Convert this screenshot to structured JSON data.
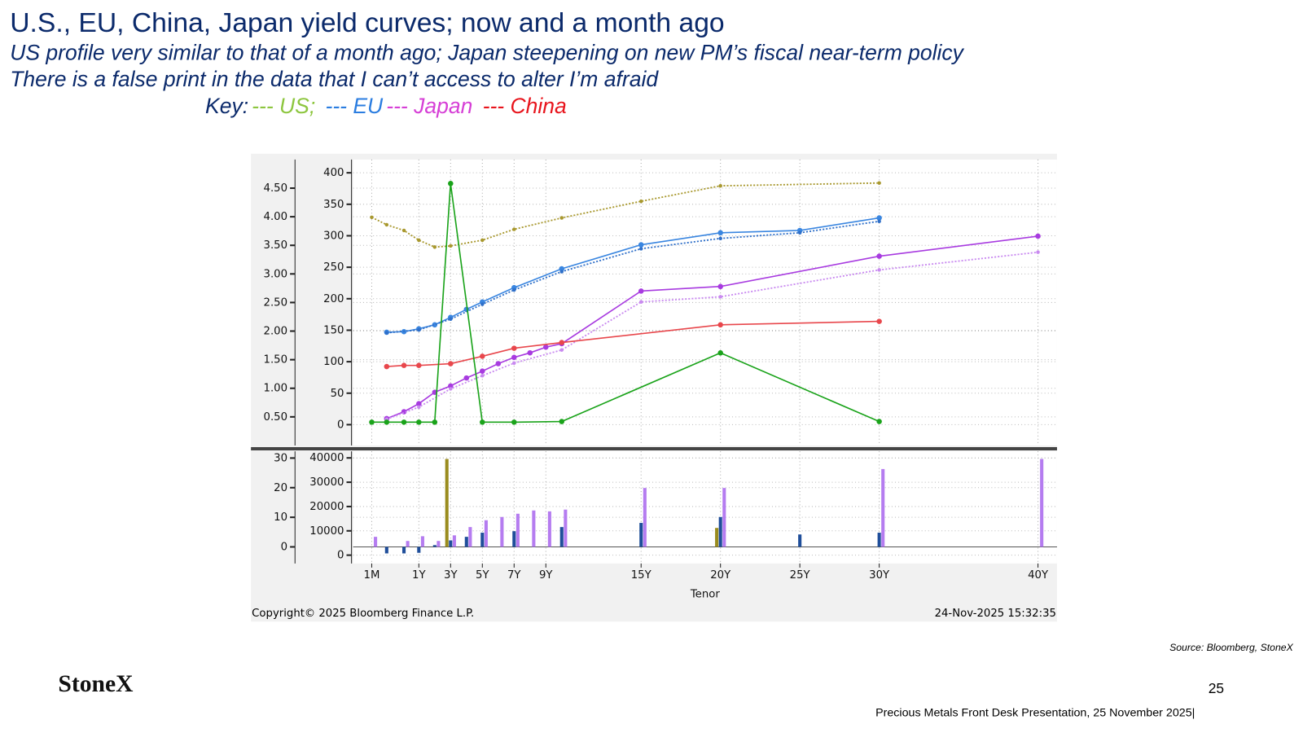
{
  "header": {
    "title": "U.S., EU, China, Japan yield curves; now and a month ago",
    "subtitle": [
      "US profile very similar to that of a month ago; Japan steepening on new PM’s fiscal near-term policy",
      "There is a false print in the data that I can’t access to alter I’m afraid"
    ],
    "key_label": "Key:",
    "key": [
      {
        "label": "--- US;",
        "color": "#8dc63f"
      },
      {
        "label": "--- EU",
        "color": "#2b7de0"
      },
      {
        "label": "--- Japan",
        "color": "#d63fd6"
      },
      {
        "label": "--- China",
        "color": "#e8141c"
      }
    ]
  },
  "chart_data": [
    {
      "type": "line",
      "xlim": [
        -0.092,
        41.2
      ],
      "ylim": [
        0,
        5
      ],
      "y2lim": [
        -33,
        421
      ],
      "grid": true,
      "yticks": [
        {
          "value": 0.5,
          "label": "0.50"
        },
        {
          "value": 1,
          "label": "1.00"
        },
        {
          "value": 1.5,
          "label": "1.50"
        },
        {
          "value": 2,
          "label": "2.00"
        },
        {
          "value": 2.5,
          "label": "2.50"
        },
        {
          "value": 3,
          "label": "3.00"
        },
        {
          "value": 3.5,
          "label": "3.50"
        },
        {
          "value": 4,
          "label": "4.00"
        },
        {
          "value": 4.5,
          "label": "4.50"
        }
      ],
      "y2ticks": [
        0,
        50,
        100,
        150,
        200,
        250,
        300,
        350,
        400
      ],
      "xticks": [
        0.0833,
        1,
        3,
        5,
        7,
        9,
        15,
        20,
        25,
        30,
        40
      ],
      "series": [
        {
          "color": "#a8982e",
          "style": "dotted",
          "x": [
            0.0833,
            0.25,
            0.5,
            1,
            2,
            3,
            5,
            7,
            10,
            15,
            20,
            30
          ],
          "values": [
            3.99,
            3.86,
            3.76,
            3.59,
            3.47,
            3.49,
            3.59,
            3.78,
            3.98,
            4.27,
            4.54,
            4.59
          ]
        },
        {
          "color": "#3a86e0",
          "style": "solid",
          "x": [
            0.25,
            0.5,
            1,
            2,
            3,
            4,
            5,
            7,
            10,
            15,
            20,
            25,
            30
          ],
          "values": [
            1.98,
            1.99,
            2.04,
            2.11,
            2.24,
            2.38,
            2.51,
            2.76,
            3.09,
            3.51,
            3.72,
            3.76,
            3.98
          ]
        },
        {
          "color": "#2f6fc8",
          "style": "dotted",
          "x": [
            0.25,
            1,
            3,
            5,
            7,
            10,
            15,
            20,
            25,
            30
          ],
          "values": [
            1.97,
            2.02,
            2.21,
            2.47,
            2.72,
            3.04,
            3.44,
            3.62,
            3.72,
            3.92
          ]
        },
        {
          "color": "#a83be0",
          "style": "solid",
          "x": [
            0.25,
            0.5,
            1,
            2,
            3,
            4,
            5,
            6,
            7,
            8,
            9,
            10,
            15,
            20,
            30,
            40
          ],
          "values": [
            0.47,
            0.59,
            0.73,
            0.93,
            1.04,
            1.18,
            1.3,
            1.43,
            1.54,
            1.62,
            1.72,
            1.78,
            2.7,
            2.78,
            3.31,
            3.66
          ]
        },
        {
          "color": "#c98af0",
          "style": "dotted",
          "x": [
            0.25,
            1,
            3,
            5,
            7,
            10,
            15,
            20,
            30,
            40
          ],
          "values": [
            0.46,
            0.67,
            0.99,
            1.22,
            1.44,
            1.67,
            2.51,
            2.6,
            3.07,
            3.38
          ]
        },
        {
          "color": "#e8474c",
          "style": "solid",
          "x": [
            0.25,
            0.5,
            1,
            3,
            5,
            7,
            10,
            20,
            30
          ],
          "values": [
            1.38,
            1.4,
            1.4,
            1.43,
            1.56,
            1.7,
            1.8,
            2.11,
            2.17
          ]
        },
        {
          "color": "#1aa31a",
          "style": "solid",
          "axis": "y2",
          "x": [
            0.0833,
            0.25,
            0.5,
            1,
            2,
            3,
            5,
            7,
            10,
            20,
            30
          ],
          "values": [
            4,
            4,
            4,
            4,
            4,
            383,
            4,
            4,
            5,
            114,
            5
          ]
        }
      ]
    },
    {
      "type": "bar",
      "xlim": [
        -0.092,
        41.2
      ],
      "ylim": [
        -5.6,
        32.3
      ],
      "y2lim": [
        -3419,
        42735
      ],
      "grid": true,
      "yticks": [
        0,
        10,
        20,
        30
      ],
      "y2ticks": [
        0,
        10000,
        20000,
        30000,
        40000
      ],
      "xticks": [
        {
          "value": 0.0833,
          "label": "1M"
        },
        {
          "value": 1,
          "label": "1Y"
        },
        {
          "value": 3,
          "label": "3Y"
        },
        {
          "value": 5,
          "label": "5Y"
        },
        {
          "value": 7,
          "label": "7Y"
        },
        {
          "value": 9,
          "label": "9Y"
        },
        {
          "value": 15,
          "label": "15Y"
        },
        {
          "value": 20,
          "label": "20Y"
        },
        {
          "value": 25,
          "label": "25Y"
        },
        {
          "value": 30,
          "label": "30Y"
        },
        {
          "value": 40,
          "label": "40Y"
        }
      ],
      "xlabel": "Tenor",
      "series": [
        {
          "color": "#9a8c1e",
          "x": [
            3,
            20
          ],
          "values": [
            29.7,
            6.4
          ]
        },
        {
          "color": "#1f4e9a",
          "x": [
            0.25,
            0.5,
            1,
            2,
            3,
            4,
            5,
            7,
            10,
            15,
            20,
            25,
            30
          ],
          "values": [
            -2.2,
            -2.2,
            -2,
            0.6,
            2.2,
            3.4,
            4.8,
            5.3,
            6.7,
            8.1,
            10.1,
            4.2,
            4.8
          ]
        },
        {
          "color": "#b57cf0",
          "x": [
            0.0833,
            0.5,
            1,
            2,
            3,
            4,
            5,
            6,
            7,
            8,
            9,
            10,
            15,
            20,
            30,
            40
          ],
          "values": [
            3.4,
            2,
            3.6,
            2,
            3.9,
            6.7,
            9,
            10.1,
            11.2,
            12.3,
            12,
            12.6,
            19.9,
            19.9,
            26.3,
            29.7
          ]
        }
      ]
    }
  ],
  "footer": {
    "copyright": "Copyright© 2025 Bloomberg Finance L.P.",
    "timestamp": "24-Nov-2025 15:32:35",
    "source": "Source: Bloomberg, StoneX",
    "logo": "StoneX",
    "page": "25",
    "presentation": "Precious Metals Front Desk Presentation, 25 November 2025|"
  }
}
